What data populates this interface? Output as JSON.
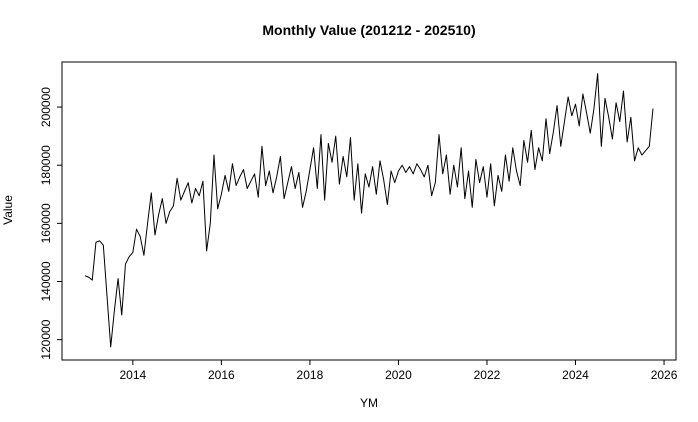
{
  "chart_data": {
    "type": "line",
    "title": "Monthly Value (201212 - 202510)",
    "xlabel": "YM",
    "ylabel": "Value",
    "start_ym": "201212",
    "end_ym": "202510",
    "x_start_decimal": 2012.9167,
    "x_step_decimal": 0.0833333,
    "xticks": [
      2014,
      2016,
      2018,
      2020,
      2022,
      2024,
      2026
    ],
    "yticks": [
      120000,
      140000,
      160000,
      180000,
      200000
    ],
    "xlim": [
      2012.4,
      2026.27
    ],
    "ylim": [
      113000,
      215500
    ],
    "grid": false,
    "legend": "none",
    "line_color": "#000000",
    "background_color": "#ffffff",
    "values": [
      142000,
      141500,
      140500,
      153500,
      154000,
      152500,
      135000,
      117500,
      130000,
      141000,
      128500,
      146000,
      148500,
      150000,
      158000,
      155500,
      149000,
      160000,
      170500,
      156000,
      163000,
      168500,
      160000,
      164000,
      166000,
      175500,
      168000,
      171000,
      174000,
      167000,
      172000,
      169500,
      174500,
      150500,
      160000,
      183500,
      165000,
      170000,
      176500,
      171000,
      180500,
      173000,
      176000,
      178500,
      172000,
      174500,
      177000,
      169000,
      186500,
      173000,
      178000,
      170500,
      176000,
      183000,
      168500,
      174000,
      179500,
      172000,
      177500,
      165500,
      171000,
      178500,
      186000,
      172000,
      190500,
      168000,
      187500,
      181000,
      190000,
      173500,
      183000,
      176000,
      189500,
      168000,
      180500,
      163500,
      177000,
      172500,
      179500,
      170000,
      181500,
      175000,
      166500,
      178000,
      174000,
      178000,
      180000,
      177500,
      179500,
      177000,
      180500,
      178500,
      176000,
      180000,
      169500,
      174000,
      190500,
      177000,
      183500,
      170000,
      180000,
      172500,
      186000,
      168500,
      178000,
      165500,
      182000,
      174000,
      179500,
      169000,
      180500,
      166000,
      176500,
      171000,
      183500,
      174500,
      186000,
      178000,
      173000,
      188500,
      181000,
      192000,
      178500,
      186000,
      181500,
      196000,
      184000,
      191500,
      200500,
      186500,
      195000,
      203500,
      197000,
      201000,
      193500,
      204500,
      198000,
      191000,
      199500,
      211500,
      186500,
      203000,
      196500,
      189000,
      201500,
      195000,
      205500,
      188000,
      196500,
      181500,
      186000,
      183500,
      185000,
      186500,
      199500
    ]
  }
}
